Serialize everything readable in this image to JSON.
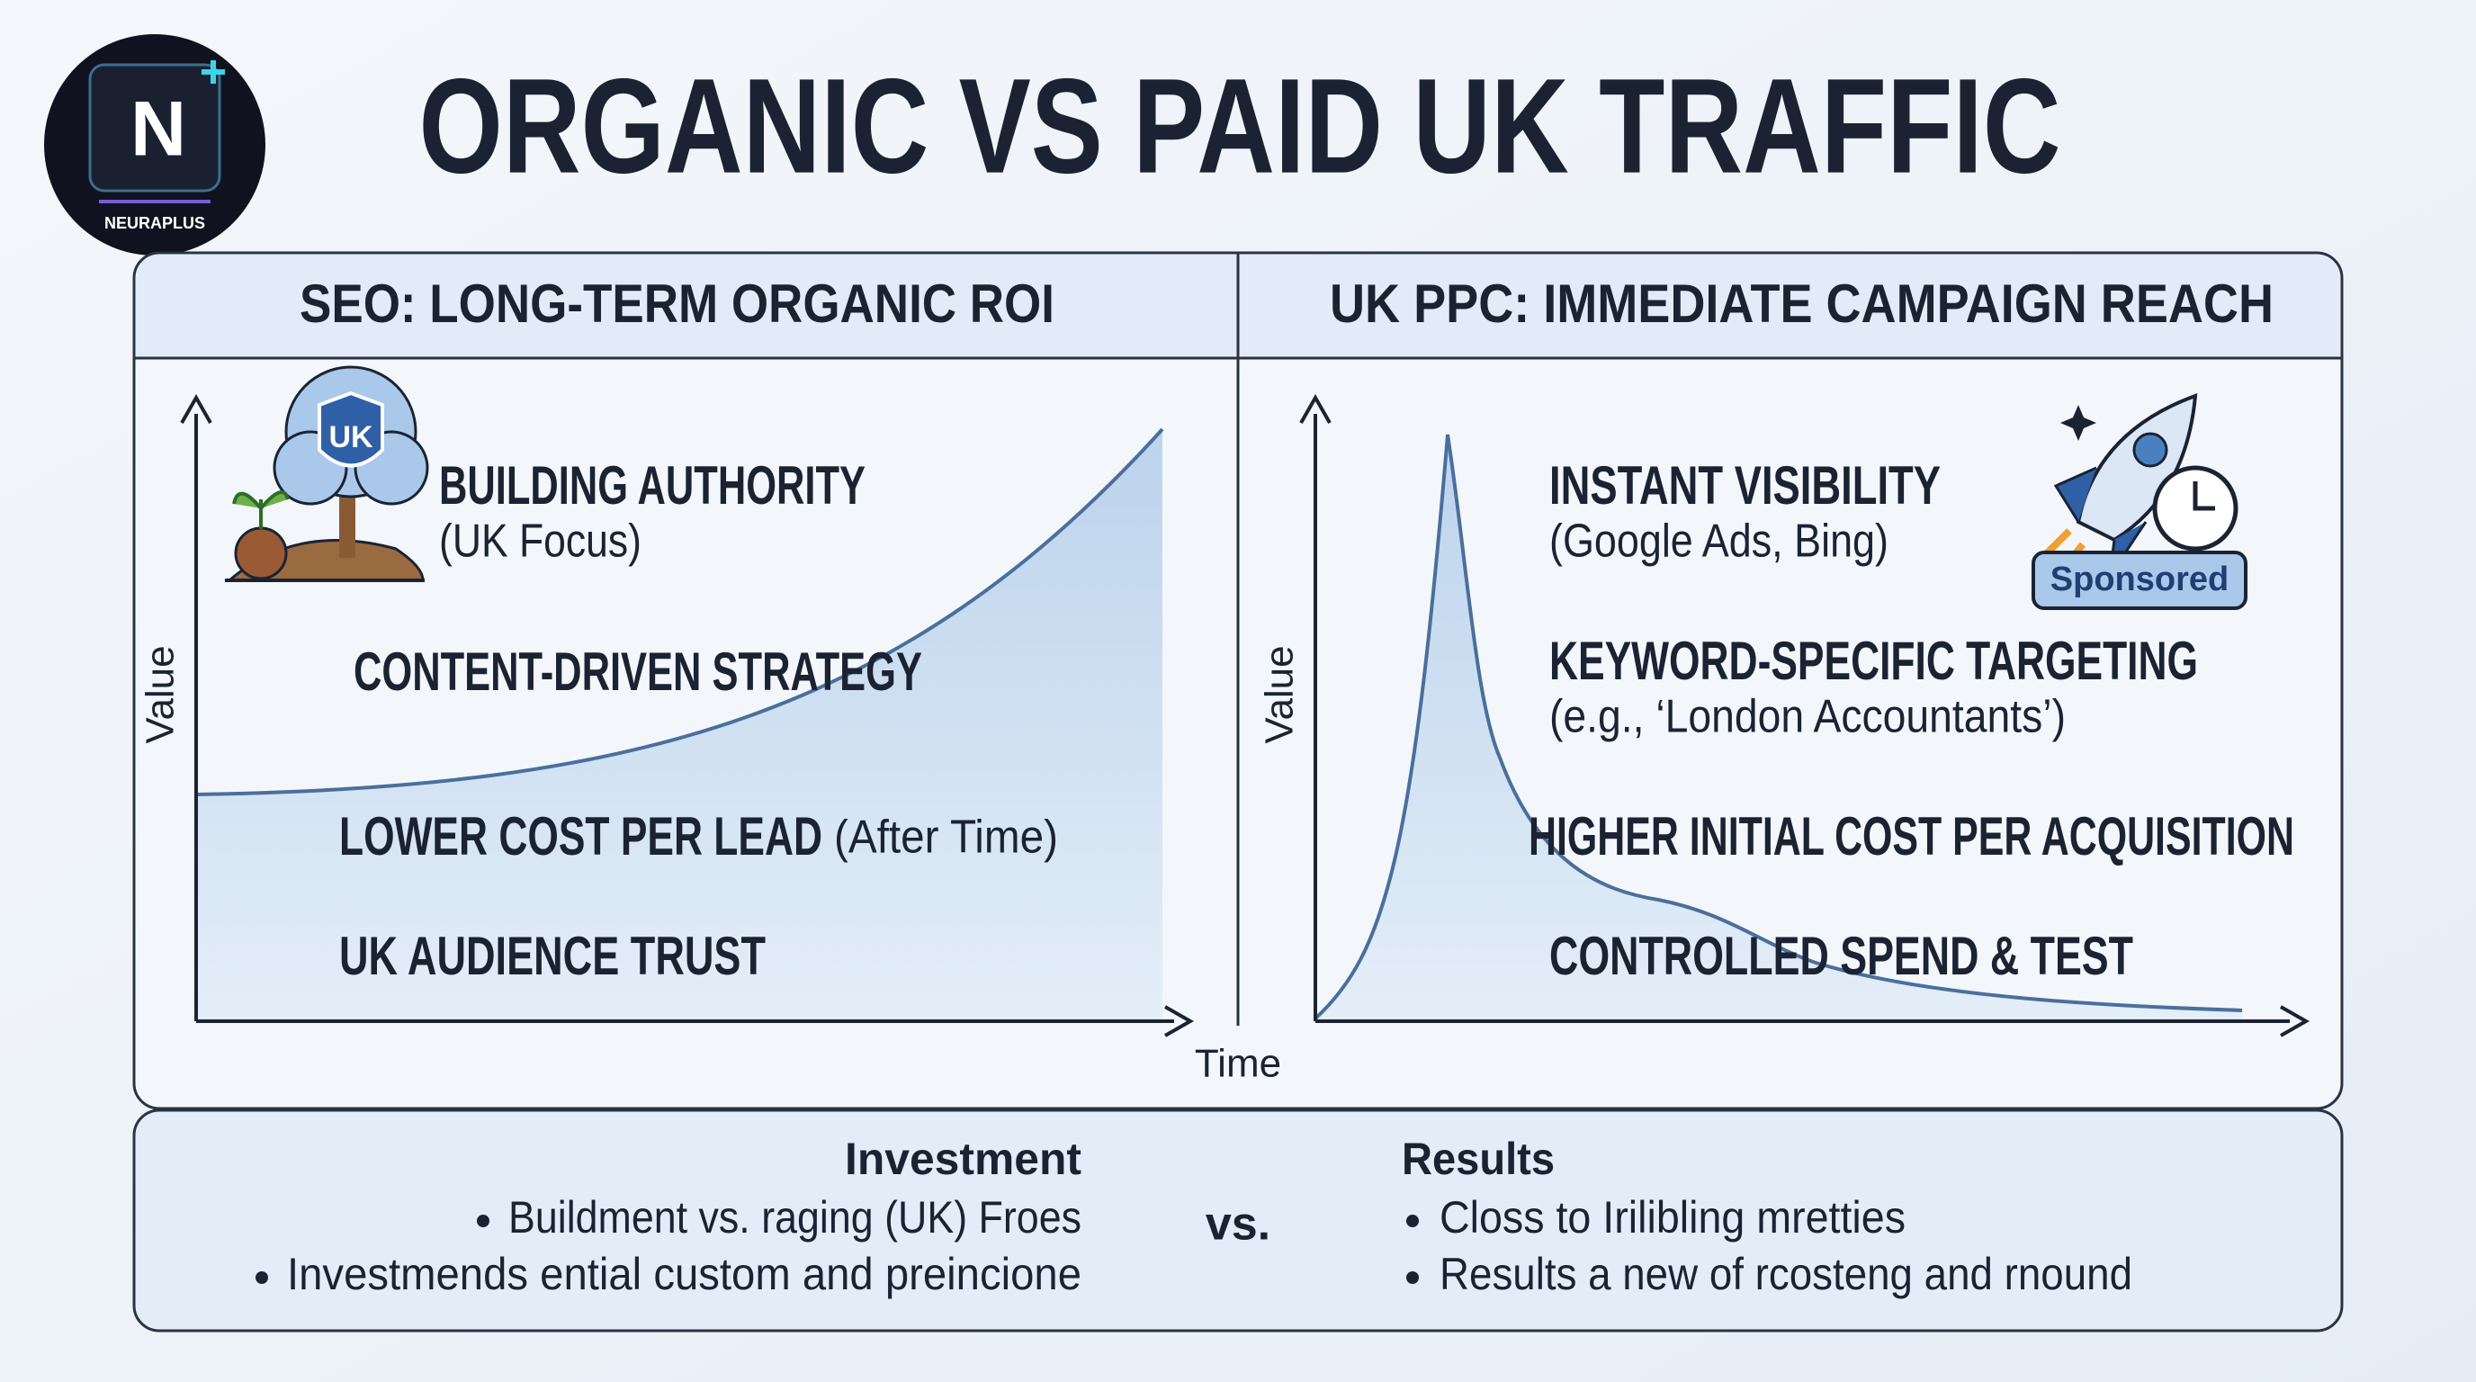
{
  "header": {
    "title": "ORGANIC VS PAID UK TRAFFIC",
    "logo": {
      "letter": "N",
      "name": "NEURAPLUS"
    }
  },
  "panels": [
    {
      "title": "SEO: LONG-TERM ORGANIC ROI",
      "y_axis": "Value",
      "badge": "UK",
      "items": [
        {
          "label": "BUILDING AUTHORITY",
          "note": "(UK Focus)"
        },
        {
          "label": "CONTENT-DRIVEN STRATEGY"
        },
        {
          "label": "LOWER COST PER LEAD",
          "note": "(After Time)"
        },
        {
          "label": "UK AUDIENCE TRUST"
        }
      ]
    },
    {
      "title": "UK PPC: IMMEDIATE CAMPAIGN REACH",
      "y_axis": "Value",
      "badge": "Sponsored",
      "items": [
        {
          "label": "INSTANT VISIBILITY",
          "note": "(Google Ads, Bing)"
        },
        {
          "label": "KEYWORD-SPECIFIC TARGETING",
          "note": "(e.g., ‘London Accountants’)"
        },
        {
          "label": "HIGHER INITIAL COST PER ACQUISITION"
        },
        {
          "label": "CONTROLLED SPEND & TEST"
        }
      ]
    }
  ],
  "x_axis": "Time",
  "footer": {
    "left": {
      "title": "Investment",
      "bullets": [
        "Buildment vs. raging (UK) Froes",
        "Investmends ential custom and preincione"
      ]
    },
    "separator": "vs.",
    "right": {
      "title": "Results",
      "bullets": [
        "Closs to Irilibling mretties",
        "Results a new of rcosteng and rnound"
      ]
    }
  }
}
